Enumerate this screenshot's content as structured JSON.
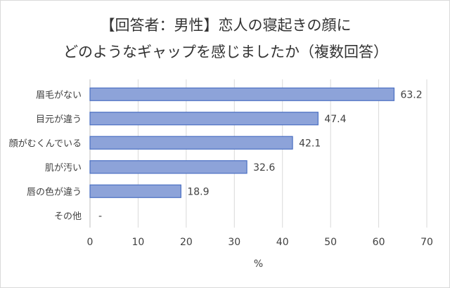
{
  "chart_data": {
    "type": "bar",
    "orientation": "horizontal",
    "title_lines": [
      "【回答者：男性】恋人の寝起きの顔に",
      "どのようなギャップを感じましたか（複数回答）"
    ],
    "categories": [
      "眉毛がない",
      "目元が違う",
      "顔がむくんでいる",
      "肌が汚い",
      "唇の色が違う",
      "その他"
    ],
    "values": [
      63.2,
      47.4,
      42.1,
      32.6,
      18.9,
      null
    ],
    "value_labels": [
      "63.2",
      "47.4",
      "42.1",
      "32.6",
      "18.9",
      "-"
    ],
    "x_ticks": [
      "0",
      "10",
      "20",
      "30",
      "40",
      "50",
      "60",
      "70"
    ],
    "xlim": [
      0,
      70
    ],
    "xlabel": "%",
    "grid": "vertical",
    "bar_color": "#8da3d9",
    "bar_border_color": "#4a6fc2"
  }
}
